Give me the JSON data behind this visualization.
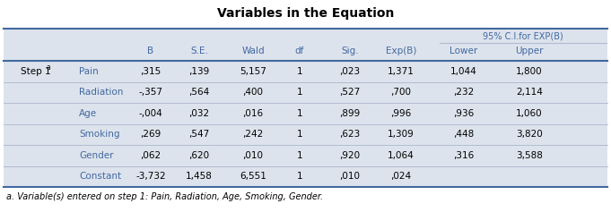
{
  "title": "Variables in the Equation",
  "col_headers": [
    "",
    "",
    "B",
    "S.E.",
    "Wald",
    "df",
    "Sig.",
    "Exp(B)",
    "Lower",
    "Upper"
  ],
  "ci_header": "95% C.I.for EXP(B)",
  "row_labels": [
    "Pain",
    "Radiation",
    "Age",
    "Smoking",
    "Gender",
    "Constant"
  ],
  "step_label": "Step 1",
  "step_superscript": "a",
  "data": [
    [
      ",315",
      ",139",
      "5,157",
      "1",
      ",023",
      "1,371",
      "1,044",
      "1,800"
    ],
    [
      "-,357",
      ",564",
      ",400",
      "1",
      ",527",
      ",700",
      ",232",
      "2,114"
    ],
    [
      "-,004",
      ",032",
      ",016",
      "1",
      ",899",
      ",996",
      ",936",
      "1,060"
    ],
    [
      ",269",
      ",547",
      ",242",
      "1",
      ",623",
      "1,309",
      ",448",
      "3,820"
    ],
    [
      ",062",
      ",620",
      ",010",
      "1",
      ",920",
      "1,064",
      ",316",
      "3,588"
    ],
    [
      "-3,732",
      "1,458",
      "6,551",
      "1",
      ",010",
      ",024",
      "",
      ""
    ]
  ],
  "footnote": "a. Variable(s) entered on step 1: Pain, Radiation, Age, Smoking, Gender.",
  "bg_color": "#ffffff",
  "table_bg_color": "#dde3ed",
  "header_text_color": "#4169a0",
  "row_label_color": "#4169a0",
  "step_label_color": "#000000",
  "data_color": "#000000",
  "row_sep_color": "#b0bcd0",
  "outer_line_color": "#4169a0",
  "title_color": "#000000",
  "figsize": [
    6.81,
    2.37
  ],
  "dpi": 100
}
